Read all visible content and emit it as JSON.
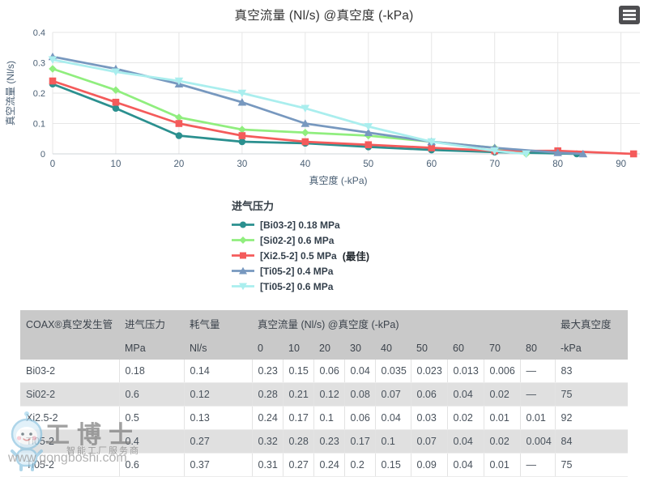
{
  "chart_data": {
    "type": "line",
    "title": "真空流量 (Nl/s) @真空度 (-kPa)",
    "xlabel": "真空度 (-kPa)",
    "ylabel": "真空流量 (Nl/s)",
    "xlim": [
      0,
      93
    ],
    "ylim": [
      0,
      0.4
    ],
    "x_ticks": [
      0,
      10,
      20,
      30,
      40,
      50,
      60,
      70,
      80,
      90
    ],
    "y_ticks": [
      0,
      0.1,
      0.2,
      0.3,
      0.4
    ],
    "y_tick_labels": [
      "0",
      "0.1",
      "0.2",
      "0.3",
      "0.4"
    ],
    "grid": true,
    "legend_position": "bottom-left",
    "series": [
      {
        "name": "[Bi03-2] 0.18 MPa",
        "color": "#2b908f",
        "marker": "circle",
        "points": [
          [
            0,
            0.23
          ],
          [
            10,
            0.15
          ],
          [
            20,
            0.06
          ],
          [
            30,
            0.04
          ],
          [
            40,
            0.035
          ],
          [
            50,
            0.023
          ],
          [
            60,
            0.013
          ],
          [
            70,
            0.006
          ],
          [
            83,
            0
          ]
        ]
      },
      {
        "name": "[Si02-2] 0.6 MPa",
        "color": "#90ee7e",
        "marker": "diamond",
        "points": [
          [
            0,
            0.28
          ],
          [
            10,
            0.21
          ],
          [
            20,
            0.12
          ],
          [
            30,
            0.08
          ],
          [
            40,
            0.07
          ],
          [
            50,
            0.06
          ],
          [
            60,
            0.04
          ],
          [
            70,
            0.02
          ],
          [
            75,
            0
          ]
        ]
      },
      {
        "name": "[Xi2.5-2] 0.5 MPa (最佳)",
        "color": "#f45b5b",
        "marker": "square",
        "points": [
          [
            0,
            0.24
          ],
          [
            10,
            0.17
          ],
          [
            20,
            0.1
          ],
          [
            30,
            0.06
          ],
          [
            40,
            0.04
          ],
          [
            50,
            0.03
          ],
          [
            60,
            0.02
          ],
          [
            70,
            0.01
          ],
          [
            80,
            0.01
          ],
          [
            92,
            0
          ]
        ]
      },
      {
        "name": "[Ti05-2] 0.4 MPa",
        "color": "#7798bf",
        "marker": "triangle",
        "points": [
          [
            0,
            0.32
          ],
          [
            10,
            0.28
          ],
          [
            20,
            0.23
          ],
          [
            30,
            0.17
          ],
          [
            40,
            0.1
          ],
          [
            50,
            0.07
          ],
          [
            60,
            0.04
          ],
          [
            70,
            0.02
          ],
          [
            80,
            0.004
          ],
          [
            84,
            0
          ]
        ]
      },
      {
        "name": "[Ti05-2] 0.6 MPa",
        "color": "#aaeeee",
        "marker": "triangle-down",
        "points": [
          [
            0,
            0.31
          ],
          [
            10,
            0.27
          ],
          [
            20,
            0.24
          ],
          [
            30,
            0.2
          ],
          [
            40,
            0.15
          ],
          [
            50,
            0.09
          ],
          [
            60,
            0.04
          ],
          [
            70,
            0.01
          ],
          [
            75,
            0
          ]
        ]
      }
    ]
  },
  "legend": {
    "title": "进气压力",
    "items": [
      {
        "label": "[Bi03-2] 0.18 MPa",
        "suffix": "",
        "color": "#2b908f",
        "marker": "circle"
      },
      {
        "label": "[Si02-2] 0.6 MPa",
        "suffix": "",
        "color": "#90ee7e",
        "marker": "diamond"
      },
      {
        "label": "[Xi2.5-2] 0.5 MPa",
        "suffix": " (最佳)",
        "color": "#f45b5b",
        "marker": "square"
      },
      {
        "label": "[Ti05-2] 0.4 MPa",
        "suffix": "",
        "color": "#7798bf",
        "marker": "triangle"
      },
      {
        "label": "[Ti05-2] 0.6 MPa",
        "suffix": "",
        "color": "#aaeeee",
        "marker": "triangle-down"
      }
    ]
  },
  "table": {
    "header": {
      "generator": "COAX®真空发生管",
      "pressure": "进气压力",
      "consumption": "耗气量",
      "flow_group": "真空流量 (Nl/s) @真空度 (-kPa)",
      "max_vacuum": "最大真空度",
      "pressure_unit": "MPa",
      "consumption_unit": "Nl/s",
      "vacuum_ticks": [
        "0",
        "10",
        "20",
        "30",
        "40",
        "50",
        "60",
        "70",
        "80"
      ],
      "max_vacuum_unit": "-kPa"
    },
    "rows": [
      {
        "name": "Bi03-2",
        "pressure": "0.18",
        "consumption": "0.14",
        "flows": [
          "0.23",
          "0.15",
          "0.06",
          "0.04",
          "0.035",
          "0.023",
          "0.013",
          "0.006",
          "—"
        ],
        "max_vacuum": "83"
      },
      {
        "name": "Si02-2",
        "pressure": "0.6",
        "consumption": "0.12",
        "flows": [
          "0.28",
          "0.21",
          "0.12",
          "0.08",
          "0.07",
          "0.06",
          "0.04",
          "0.02",
          "—"
        ],
        "max_vacuum": "75"
      },
      {
        "name": "Xi2.5-2",
        "pressure": "0.5",
        "consumption": "0.13",
        "flows": [
          "0.24",
          "0.17",
          "0.1",
          "0.06",
          "0.04",
          "0.03",
          "0.02",
          "0.01",
          "0.01"
        ],
        "max_vacuum": "92"
      },
      {
        "name": "Ti05-2",
        "pressure": "0.4",
        "consumption": "0.27",
        "flows": [
          "0.32",
          "0.28",
          "0.23",
          "0.17",
          "0.1",
          "0.07",
          "0.04",
          "0.02",
          "0.004"
        ],
        "max_vacuum": "84"
      },
      {
        "name": "Ti05-2",
        "pressure": "0.6",
        "consumption": "0.37",
        "flows": [
          "0.31",
          "0.27",
          "0.24",
          "0.2",
          "0.15",
          "0.09",
          "0.04",
          "0.01",
          "—"
        ],
        "max_vacuum": "75"
      }
    ]
  },
  "watermark": {
    "brand": "工博士",
    "tagline": "智能工厂服务商",
    "url": "www.gongboshi.com",
    "mascot": "robot-mascot-icon",
    "accent_color": "#7ec3e8"
  },
  "colors": {
    "axis_label": "#4a5f74",
    "gridline": "#e6e6e6",
    "axis_line": "#cfd4d9",
    "table_header_bg": "#c9c9c9",
    "table_alt_row_bg": "#e0e0e0"
  }
}
